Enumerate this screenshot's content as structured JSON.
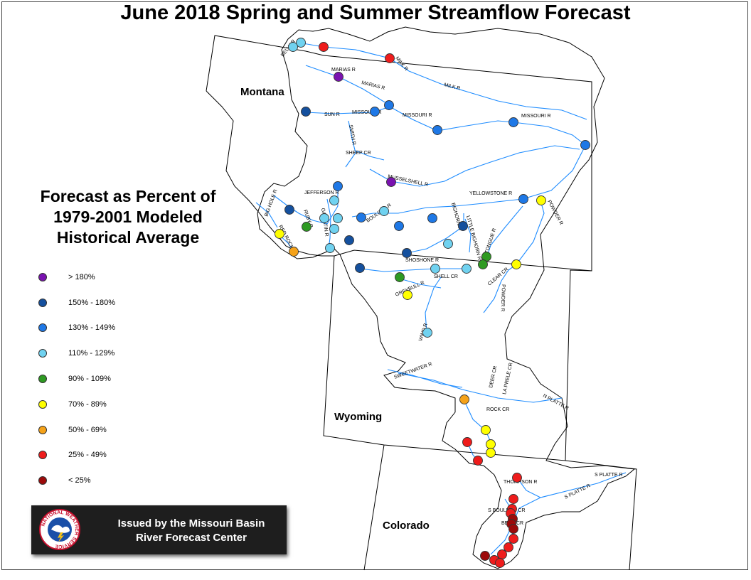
{
  "title": "June 2018 Spring and Summer Streamflow Forecast",
  "states": [
    {
      "name": "Montana"
    },
    {
      "name": "Wyoming"
    },
    {
      "name": "Colorado"
    }
  ],
  "rivers": [
    "BELLY R",
    "MILK R",
    "MARIAS R",
    "MARIAS R",
    "MILK R",
    "MISSOURI R",
    "SUN R",
    "MISSOURI R",
    "MISSOURI R",
    "SMITH R",
    "SHEEP CR",
    "MUSSELSHELL R",
    "JEFFERSON R",
    "BIG HOLE R",
    "RUBY R",
    "GALLATIN R",
    "RED ROCK R",
    "YELLOWSTONE R",
    "BOULDER R",
    "BIGHORN R",
    "LITTLE BIGHORN R",
    "TONGUE R",
    "POWDER R",
    "SHOSHONE R",
    "SHELL CR",
    "GREYBULL R",
    "CLEAR CR",
    "POWDER R",
    "WIND R",
    "SWEETWATER R",
    "DEER CR",
    "LA PRELE CR",
    "N PLATTE R",
    "ROCK CR",
    "THOMPSON R",
    "S PLATTE R",
    "S PLATTE R",
    "S BOULDER CR",
    "BEAR CR"
  ],
  "legend": {
    "title_lines": [
      "Forecast as Percent of",
      "1979-2001 Modeled",
      "Historical Average"
    ],
    "classes": [
      {
        "label": "> 180%",
        "color": "#7a12b0"
      },
      {
        "label": "150% - 180%",
        "color": "#14509e"
      },
      {
        "label": "130% - 149%",
        "color": "#1e78e6"
      },
      {
        "label": "110% - 129%",
        "color": "#70d2f0"
      },
      {
        "label": "90% - 109%",
        "color": "#2e9a22"
      },
      {
        "label": "70% - 89%",
        "color": "#ffff00"
      },
      {
        "label": "50% - 69%",
        "color": "#f5a219"
      },
      {
        "label": "25% - 49%",
        "color": "#ee1c1c"
      },
      {
        "label": "< 25%",
        "color": "#9c0a0a"
      }
    ]
  },
  "stations": [
    {
      "class": 3
    },
    {
      "class": 3
    },
    {
      "class": 7
    },
    {
      "class": 7
    },
    {
      "class": 0
    },
    {
      "class": 2
    },
    {
      "class": 1
    },
    {
      "class": 2
    },
    {
      "class": 2
    },
    {
      "class": 2
    },
    {
      "class": 2
    },
    {
      "class": 0
    },
    {
      "class": 2
    },
    {
      "class": 1
    },
    {
      "class": 3
    },
    {
      "class": 3
    },
    {
      "class": 3
    },
    {
      "class": 5
    },
    {
      "class": 4
    },
    {
      "class": 6
    },
    {
      "class": 3
    },
    {
      "class": 3
    },
    {
      "class": 1
    },
    {
      "class": 2
    },
    {
      "class": 3
    },
    {
      "class": 2
    },
    {
      "class": 2
    },
    {
      "class": 1
    },
    {
      "class": 2
    },
    {
      "class": 5
    },
    {
      "class": 3
    },
    {
      "class": 1
    },
    {
      "class": 4
    },
    {
      "class": 4
    },
    {
      "class": 5
    },
    {
      "class": 3
    },
    {
      "class": 3
    },
    {
      "class": 4
    },
    {
      "class": 5
    },
    {
      "class": 1
    },
    {
      "class": 3
    },
    {
      "class": 6
    },
    {
      "class": 7
    },
    {
      "class": 5
    },
    {
      "class": 5
    },
    {
      "class": 5
    },
    {
      "class": 7
    },
    {
      "class": 7
    },
    {
      "class": 7
    },
    {
      "class": 7
    },
    {
      "class": 7
    },
    {
      "class": 8
    },
    {
      "class": 8
    },
    {
      "class": 8
    },
    {
      "class": 7
    },
    {
      "class": 7
    },
    {
      "class": 7
    },
    {
      "class": 8
    },
    {
      "class": 7
    },
    {
      "class": 7
    }
  ],
  "issued_by": {
    "line1": "Issued by the Missouri Basin",
    "line2": "River Forecast Center",
    "logo_text": "NATIONAL WEATHER SERVICE"
  }
}
